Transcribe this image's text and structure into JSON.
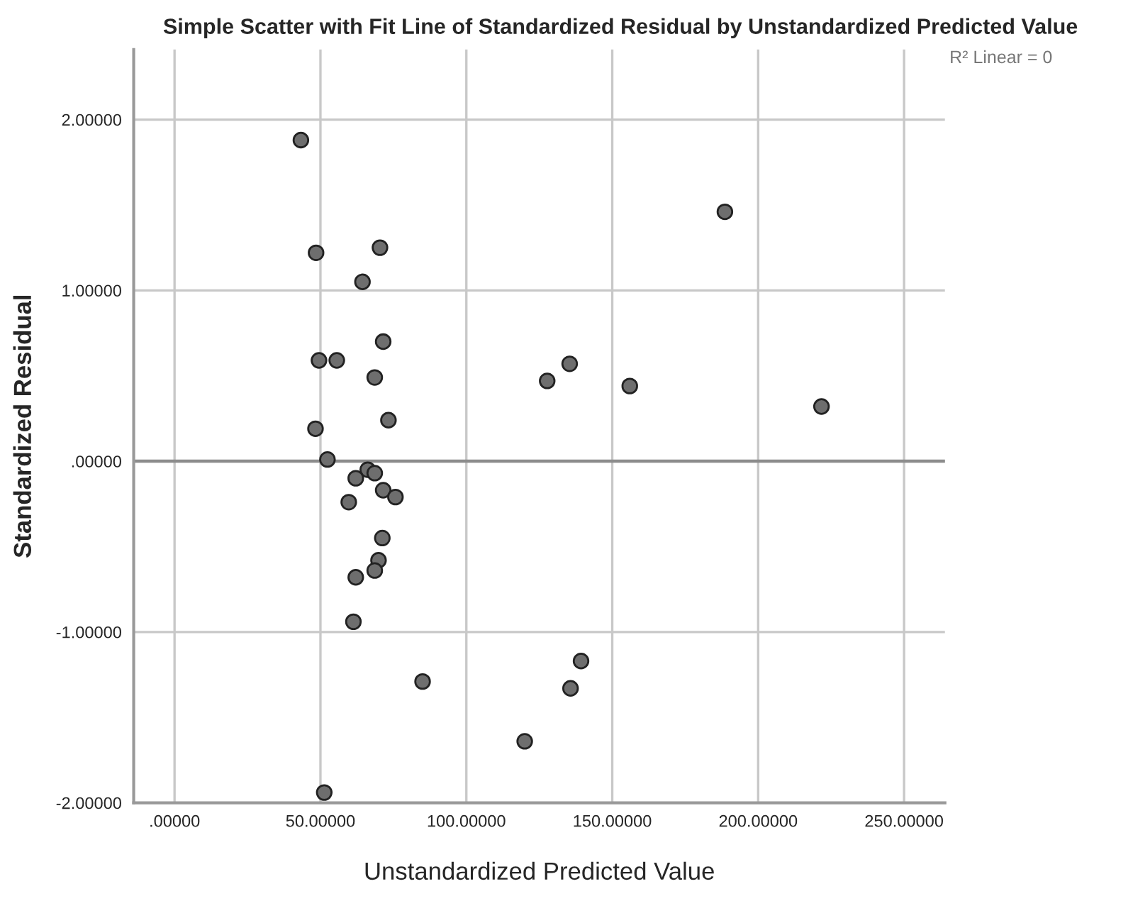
{
  "chart_data": {
    "type": "scatter",
    "title": "Simple Scatter with Fit Line of Standardized Residual by Unstandardized Predicted Value",
    "xlabel": "Unstandardized Predicted Value",
    "ylabel": "Standardized Residual",
    "annotations": [
      "R² Linear = 0"
    ],
    "series": [
      {
        "color": "#6e6e6e",
        "x": [
          43.3,
          48.5,
          70.4,
          64.4,
          71.5,
          49.5,
          55.6,
          68.6,
          135.4,
          127.7,
          73.3,
          48.3,
          52.4,
          66.2,
          68.6,
          62.1,
          71.5,
          75.7,
          59.7,
          71.2,
          69.9,
          68.6,
          62.1,
          61.3,
          85.0,
          139.3,
          135.7,
          120.0,
          51.3,
          188.6,
          156.0,
          221.7
        ],
        "values": [
          1.88,
          1.22,
          1.25,
          1.05,
          0.7,
          0.59,
          0.59,
          0.49,
          0.57,
          0.47,
          0.24,
          0.19,
          0.01,
          -0.05,
          -0.07,
          -0.1,
          -0.17,
          -0.21,
          -0.24,
          -0.45,
          -0.58,
          -0.64,
          -0.68,
          -0.94,
          -1.29,
          -1.17,
          -1.33,
          -1.64,
          -1.94,
          1.46,
          0.44,
          0.32
        ]
      },
      {
        "type": "line",
        "marker": "none",
        "color": "#8c8c8c",
        "x": [
          -14,
          264
        ],
        "values": [
          0,
          0
        ]
      }
    ],
    "xlim": [
      -14,
      264
    ],
    "ylim": [
      -2.0,
      2.41
    ],
    "xticks": [
      {
        "value": 0,
        "label": ".00000"
      },
      {
        "value": 50,
        "label": "50.00000"
      },
      {
        "value": 100,
        "label": "100.00000"
      },
      {
        "value": 150,
        "label": "150.00000"
      },
      {
        "value": 200,
        "label": "200.00000"
      },
      {
        "value": 250,
        "label": "250.00000"
      }
    ],
    "yticks": [
      {
        "value": -2,
        "label": "-2.00000"
      },
      {
        "value": -1,
        "label": "-1.00000"
      },
      {
        "value": 0,
        "label": ".00000"
      },
      {
        "value": 1,
        "label": "1.00000"
      },
      {
        "value": 2,
        "label": "2.00000"
      }
    ],
    "grid": true,
    "marker": "circle"
  }
}
